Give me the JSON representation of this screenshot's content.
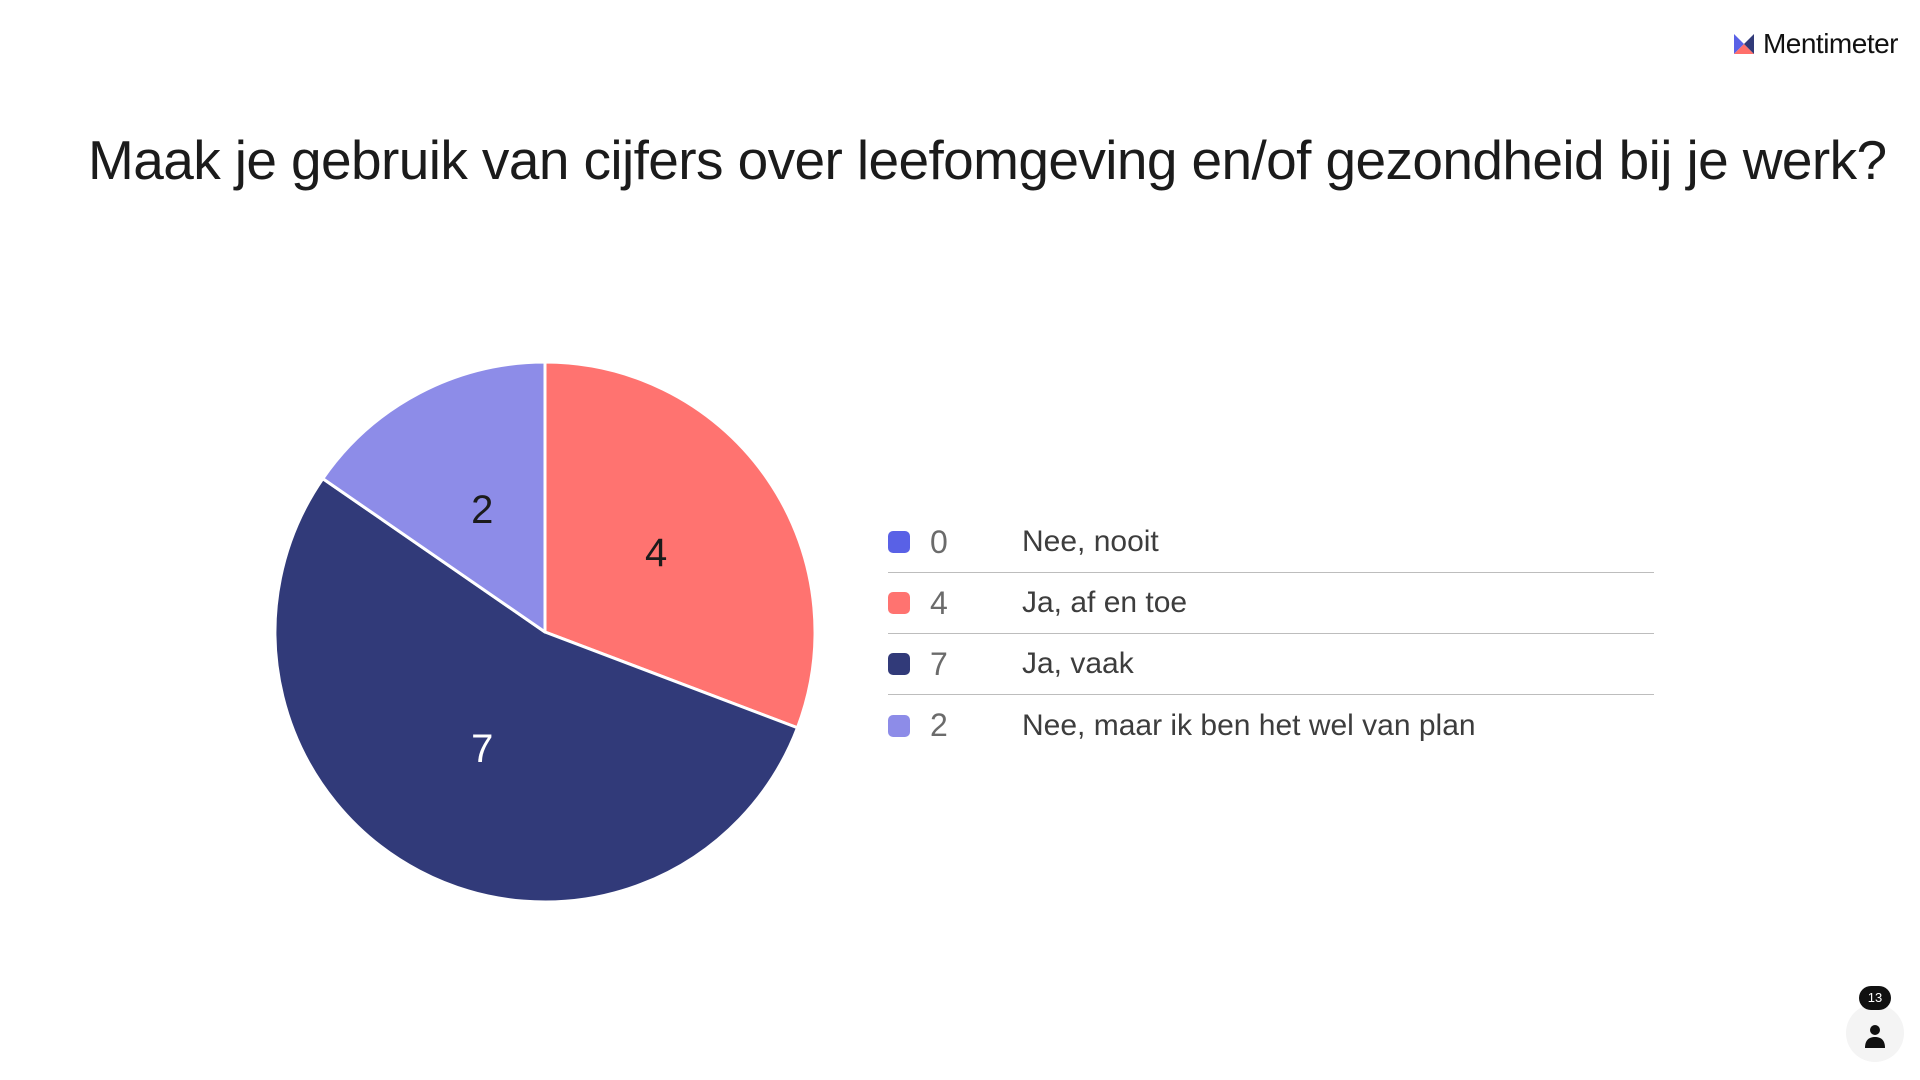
{
  "brand": {
    "name": "Mentimeter",
    "icon": "mentimeter-logo-icon",
    "colors": {
      "dark": "#313a79",
      "red": "#ff6f6b",
      "violet": "#5961e6"
    }
  },
  "question": "Maak je gebruik van cijfers over leefomgeving en/of gezondheid bij je werk?",
  "chart_data": {
    "type": "pie",
    "title": "Maak je gebruik van cijfers over leefomgeving en/of gezondheid bij je werk?",
    "categories": [
      "Nee, nooit",
      "Ja, af en toe",
      "Ja, vaak",
      "Nee, maar ik ben het wel van plan"
    ],
    "values": [
      0,
      4,
      7,
      2
    ],
    "colors": [
      "#5961e6",
      "#ff7370",
      "#313a79",
      "#8d8ce8"
    ],
    "label_colors": [
      "#1b1b1b",
      "#1b1b1b",
      "#ffffff",
      "#1b1b1b"
    ],
    "legend_position": "right",
    "start_angle": "top",
    "direction": "clockwise"
  },
  "participants": {
    "count": "13",
    "icon": "person-icon"
  }
}
